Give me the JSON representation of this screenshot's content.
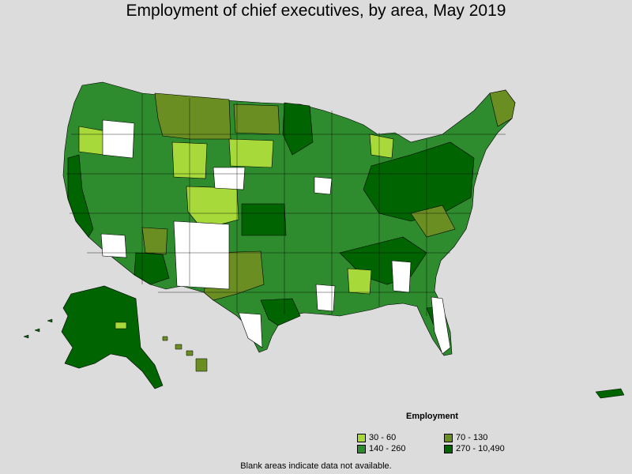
{
  "title": "Employment of chief executives, by area, May 2019",
  "legend": {
    "title": "Employment",
    "items": [
      {
        "label": "30 - 60",
        "color": "#a8d93a"
      },
      {
        "label": "70 - 130",
        "color": "#6b8e23"
      },
      {
        "label": "140 - 260",
        "color": "#2e8b2e"
      },
      {
        "label": "270 - 10,490",
        "color": "#006400"
      }
    ]
  },
  "colors": {
    "no_data": "#ffffff",
    "background": "#dcdcdc",
    "border": "#000000"
  },
  "footnote": "Blank areas indicate data not available."
}
